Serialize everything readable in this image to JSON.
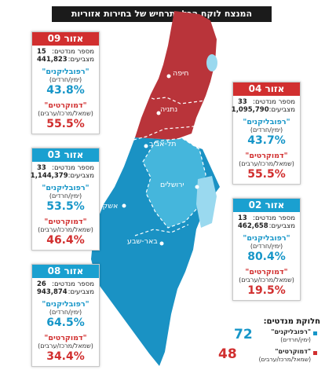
{
  "title": "המנצח לוקח הכל: תרחיש של בחירות אזוריות",
  "colors": {
    "red": "#d12f2f",
    "blue": "#1aa0d0",
    "map_red": "#b9343a",
    "map_blue": "#1a92c4",
    "water": "#9ad9ef"
  },
  "cities": {
    "haifa": "חיפה",
    "netanya": "נתניה",
    "telaviv": "תל-אביב",
    "jerusalem": "ירושלים",
    "ashkelon": "אשקלון",
    "beersheva": "באר-שבע"
  },
  "labels": {
    "seats": "מספר מנדטים:",
    "voters": "מצביעים:",
    "republicans": "\"רפובליקנים\"",
    "republicans_sub": "(ימין/חרדים)",
    "democrats": "\"דמוקרטים\"",
    "democrats_sub": "(שמאל/מרכז/ערבים)"
  },
  "regions": {
    "r09": {
      "name": "אזור 09",
      "seats": "15",
      "voters": "441,823",
      "rep": "43.8%",
      "dem": "55.5%"
    },
    "r04": {
      "name": "אזור 04",
      "seats": "33",
      "voters": "1,095,790",
      "rep": "43.7%",
      "dem": "55.5%"
    },
    "r03": {
      "name": "אזור 03",
      "seats": "33",
      "voters": "1,144,379",
      "rep": "53.5%",
      "dem": "46.4%"
    },
    "r02": {
      "name": "אזור 02",
      "seats": "13",
      "voters": "462,658",
      "rep": "80.4%",
      "dem": "19.5%"
    },
    "r08": {
      "name": "אזור 08",
      "seats": "26",
      "voters": "943,874",
      "rep": "64.5%",
      "dem": "34.4%"
    }
  },
  "legend": {
    "title": "חלוקת מנדטים:",
    "rep_count": "72",
    "rep_name": "\"רפובליקנים\"",
    "rep_sub": "(ימין/חרדים)",
    "dem_count": "48",
    "dem_name": "\"דמוקרטים\"",
    "dem_sub": "(שמאל/מרכז/ערבים)"
  }
}
